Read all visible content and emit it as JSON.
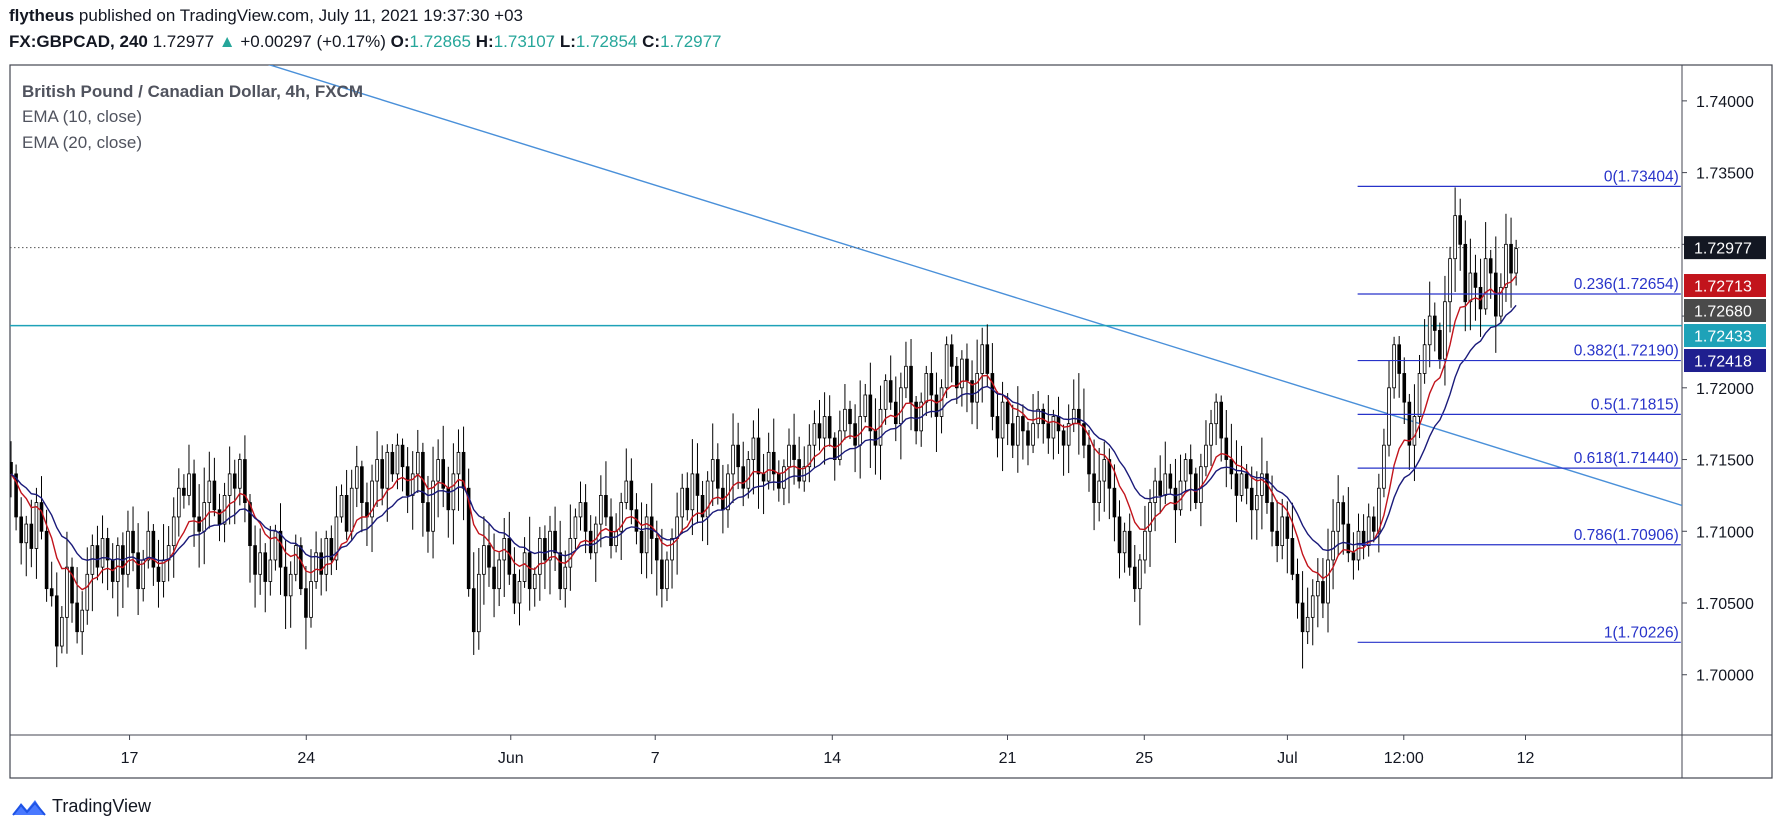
{
  "header": {
    "author": "flytheus",
    "published_text": "published on TradingView.com, July 11, 2021 19:37:30 +03",
    "symbol": "FX:GBPCAD, 240",
    "last": "1.72977",
    "change": "+0.00297 (+0.17%)",
    "o_label": "O:",
    "o_value": "1.72865",
    "h_label": "H:",
    "h_value": "1.73107",
    "l_label": "L:",
    "l_value": "1.72854",
    "c_label": "C:",
    "c_value": "1.72977"
  },
  "legend": {
    "title": "British Pound / Canadian Dollar, 4h, FXCM",
    "ema1": "EMA (10, close)",
    "ema2": "EMA (20, close)"
  },
  "brand": {
    "name": "TradingView"
  },
  "colors": {
    "up": "#26a69a",
    "candle": "#000000",
    "ema10": "#c2141c",
    "ema20": "#1a1a7a",
    "fib": "#2733c9",
    "trend": "#4a90d9",
    "hline": "#1ea2b8"
  },
  "chart_data": {
    "type": "candlestick",
    "ylim": [
      1.6958,
      1.7425
    ],
    "y_ticks": [
      "1.74000",
      "1.73500",
      "1.73000",
      "1.72500",
      "1.72000",
      "1.71500",
      "1.71000",
      "1.70500",
      "1.70000"
    ],
    "x_ticks": [
      {
        "label": "17",
        "pos": 0.0715
      },
      {
        "label": "24",
        "pos": 0.1772
      },
      {
        "label": "Jun",
        "pos": 0.2995
      },
      {
        "label": "7",
        "pos": 0.3859
      },
      {
        "label": "14",
        "pos": 0.4918
      },
      {
        "label": "21",
        "pos": 0.5966
      },
      {
        "label": "25",
        "pos": 0.6784
      },
      {
        "label": "Jul",
        "pos": 0.764
      },
      {
        "label": "12:00",
        "pos": 0.8336
      },
      {
        "label": "12",
        "pos": 0.9064
      }
    ],
    "price_labels": [
      {
        "value": "1.72977",
        "role": "last price",
        "bg": "#131722"
      },
      {
        "value": "1.72713",
        "role": "EMA 10",
        "bg": "#c2141c"
      },
      {
        "value": "1.72680",
        "role": "price",
        "bg": "#4a4a4a"
      },
      {
        "value": "1.72433",
        "role": "horizontal line",
        "bg": "#1ea2b8"
      },
      {
        "value": "1.72418",
        "role": "EMA 20",
        "bg": "#1f1f8f"
      }
    ],
    "fibonacci": [
      {
        "label": "0(1.73404)",
        "value": 1.73404
      },
      {
        "label": "0.236(1.72654)",
        "value": 1.72654
      },
      {
        "label": "0.382(1.72190)",
        "value": 1.7219
      },
      {
        "label": "0.5(1.71815)",
        "value": 1.71815
      },
      {
        "label": "0.618(1.71440)",
        "value": 1.7144
      },
      {
        "label": "0.786(1.70906)",
        "value": 1.70906
      },
      {
        "label": "1(1.70226)",
        "value": 1.70226
      }
    ],
    "fib_range": [
      0.806,
      0.9993
    ],
    "horizontal_line": 1.72433,
    "last_price": 1.72977,
    "trendline": [
      {
        "pos": 0.1473,
        "value": 1.7428
      },
      {
        "pos": 1.0,
        "value": 1.7118
      }
    ],
    "series_close": [
      1.714,
      1.711,
      1.7092,
      1.7105,
      1.7088,
      1.712,
      1.71,
      1.706,
      1.7055,
      1.702,
      1.704,
      1.7075,
      1.705,
      1.703,
      1.7045,
      1.707,
      1.709,
      1.7075,
      1.7095,
      1.708,
      1.7065,
      1.709,
      1.707,
      1.71,
      1.7085,
      1.706,
      1.708,
      1.71,
      1.7075,
      1.7065,
      1.708,
      1.709,
      1.711,
      1.713,
      1.7125,
      1.714,
      1.711,
      1.71,
      1.712,
      1.7135,
      1.7115,
      1.7105,
      1.7125,
      1.714,
      1.713,
      1.715,
      1.712,
      1.709,
      1.707,
      1.7085,
      1.7065,
      1.708,
      1.71,
      1.7075,
      1.7055,
      1.707,
      1.709,
      1.706,
      1.704,
      1.7065,
      1.7085,
      1.707,
      1.7095,
      1.708,
      1.711,
      1.7125,
      1.71,
      1.713,
      1.7145,
      1.712,
      1.711,
      1.7135,
      1.715,
      1.713,
      1.7155,
      1.714,
      1.716,
      1.7145,
      1.7125,
      1.714,
      1.7155,
      1.712,
      1.71,
      1.7135,
      1.715,
      1.713,
      1.7115,
      1.714,
      1.7155,
      1.713,
      1.706,
      1.703,
      1.707,
      1.709,
      1.7075,
      1.706,
      1.708,
      1.7095,
      1.707,
      1.705,
      1.7065,
      1.7085,
      1.706,
      1.707,
      1.7095,
      1.708,
      1.71,
      1.7085,
      1.706,
      1.7075,
      1.7095,
      1.711,
      1.712,
      1.71,
      1.7085,
      1.7105,
      1.7125,
      1.711,
      1.709,
      1.71,
      1.712,
      1.7135,
      1.7115,
      1.71,
      1.7085,
      1.711,
      1.7095,
      1.708,
      1.706,
      1.708,
      1.7095,
      1.711,
      1.713,
      1.7115,
      1.714,
      1.7125,
      1.711,
      1.7135,
      1.715,
      1.713,
      1.7115,
      1.714,
      1.716,
      1.7145,
      1.713,
      1.715,
      1.7165,
      1.714,
      1.7135,
      1.7155,
      1.714,
      1.713,
      1.7145,
      1.716,
      1.715,
      1.7135,
      1.7145,
      1.716,
      1.7175,
      1.7165,
      1.718,
      1.7165,
      1.715,
      1.717,
      1.7185,
      1.7175,
      1.716,
      1.718,
      1.7195,
      1.717,
      1.716,
      1.7185,
      1.7205,
      1.719,
      1.7175,
      1.72,
      1.7215,
      1.719,
      1.717,
      1.719,
      1.721,
      1.7195,
      1.718,
      1.72,
      1.723,
      1.7215,
      1.72,
      1.722,
      1.7205,
      1.719,
      1.721,
      1.723,
      1.721,
      1.718,
      1.7165,
      1.719,
      1.7175,
      1.716,
      1.718,
      1.717,
      1.716,
      1.7175,
      1.7185,
      1.7175,
      1.7165,
      1.718,
      1.717,
      1.716,
      1.7175,
      1.7185,
      1.7175,
      1.716,
      1.714,
      1.712,
      1.7135,
      1.715,
      1.713,
      1.711,
      1.7085,
      1.71,
      1.7075,
      1.706,
      1.708,
      1.71,
      1.712,
      1.7135,
      1.7125,
      1.714,
      1.713,
      1.7115,
      1.7135,
      1.715,
      1.714,
      1.712,
      1.7145,
      1.716,
      1.7175,
      1.719,
      1.7165,
      1.715,
      1.714,
      1.7125,
      1.714,
      1.713,
      1.7115,
      1.7125,
      1.714,
      1.712,
      1.71,
      1.709,
      1.711,
      1.7095,
      1.707,
      1.705,
      1.703,
      1.704,
      1.7055,
      1.7065,
      1.705,
      1.708,
      1.71,
      1.712,
      1.7105,
      1.7085,
      1.708,
      1.71,
      1.709,
      1.711,
      1.71,
      1.713,
      1.716,
      1.72,
      1.723,
      1.721,
      1.719,
      1.716,
      1.718,
      1.721,
      1.723,
      1.725,
      1.724,
      1.722,
      1.726,
      1.729,
      1.732,
      1.73,
      1.726,
      1.728,
      1.727,
      1.7255,
      1.729,
      1.728,
      1.725,
      1.727,
      1.73,
      1.728,
      1.7297
    ]
  }
}
